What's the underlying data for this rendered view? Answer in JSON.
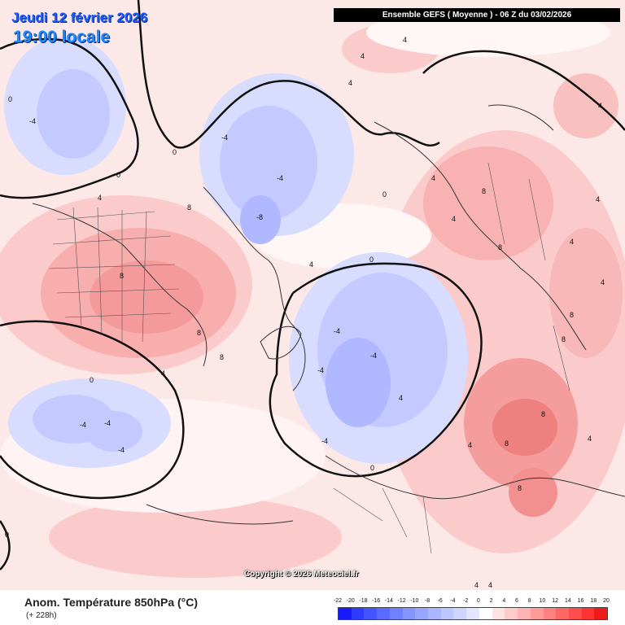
{
  "header": {
    "date": "Jeudi 12 février 2026",
    "time": "19:00 locale",
    "model": "Ensemble GEFS  ( Moyenne )  -  06 Z du 03/02/2026"
  },
  "map": {
    "projection": "polar stereographic, Northern Hemisphere",
    "contour_labels": [
      "0",
      "4",
      "-4",
      "8",
      "-8"
    ]
  },
  "copyright": "Copyright © 2026 Meteociel.fr",
  "legend": {
    "title": "Anom. Température 850hPa (°C)",
    "lead": "(+ 228h)",
    "scale_values": [
      "-22",
      "-20",
      "-18",
      "-16",
      "-14",
      "-12",
      "-10",
      "-8",
      "-6",
      "-4",
      "-2",
      "0",
      "2",
      "4",
      "6",
      "8",
      "10",
      "12",
      "14",
      "16",
      "18",
      "20"
    ],
    "scale_colors": [
      "#1a1aff",
      "#2e3cff",
      "#4455ff",
      "#5a6cff",
      "#7080ff",
      "#8595ff",
      "#98a6ff",
      "#aab6ff",
      "#bcc6ff",
      "#cdd5ff",
      "#e2e6ff",
      "#ffffff",
      "#ffe2e2",
      "#ffcccc",
      "#ffb3b3",
      "#ff9a9a",
      "#ff8080",
      "#ff6666",
      "#ff4d4d",
      "#ff3333",
      "#ee1a1a"
    ]
  }
}
